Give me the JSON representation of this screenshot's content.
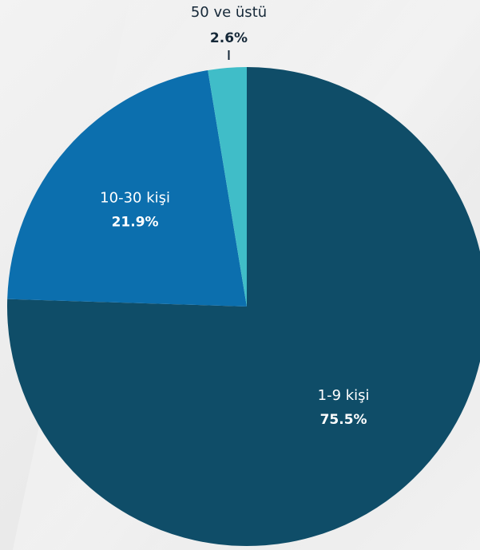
{
  "chart_data": {
    "type": "pie",
    "slices": [
      {
        "label": "1-9 kişi",
        "value": 75.5,
        "display": "75.5%",
        "color": "#0f4d68",
        "text_color": "#ffffff"
      },
      {
        "label": "10-30 kişi",
        "value": 21.9,
        "display": "21.9%",
        "color": "#0c6fae",
        "text_color": "#ffffff"
      },
      {
        "label": "50 ve üstü",
        "value": 2.6,
        "display": "2.6%",
        "color": "#40bdc8",
        "text_color": "#152838"
      }
    ],
    "start_angle_deg": 0,
    "direction": "clockwise"
  }
}
